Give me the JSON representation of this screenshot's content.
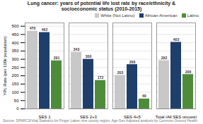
{
  "chart_data": {
    "type": "bar",
    "title": "Lung cancer: years of potential life lost rate by race/ethnicity &\nsocioeconomic status (2010-2015)",
    "caption": "Source: SPARCS/Vital Statistics for Finger Lakes nine county region, Age-Sex Adjusted analysis by Common Ground Health",
    "categories": [
      "SES 1",
      "SES 2+3",
      "SES 4+5",
      "Total (All SES groups)"
    ],
    "series": [
      {
        "name": "White (Not Latino)",
        "color": "#c8c8c8",
        "values": [
          470,
          343,
          203,
          292
        ]
      },
      {
        "name": "African-American",
        "color": "#1e3f6b",
        "values": [
          462,
          300,
          268,
          403
        ]
      },
      {
        "name": "Latino",
        "color": "#4e8c3a",
        "values": [
          291,
          172,
          60,
          208
        ]
      }
    ],
    "ylabel": "YPL Rate (per 100k population)",
    "ylim": [
      0,
      520
    ],
    "yticks": [
      0,
      50,
      100,
      150,
      200,
      250,
      300,
      350,
      400,
      450,
      500
    ],
    "grid": true,
    "legend": "upper right",
    "data_labels": true
  }
}
